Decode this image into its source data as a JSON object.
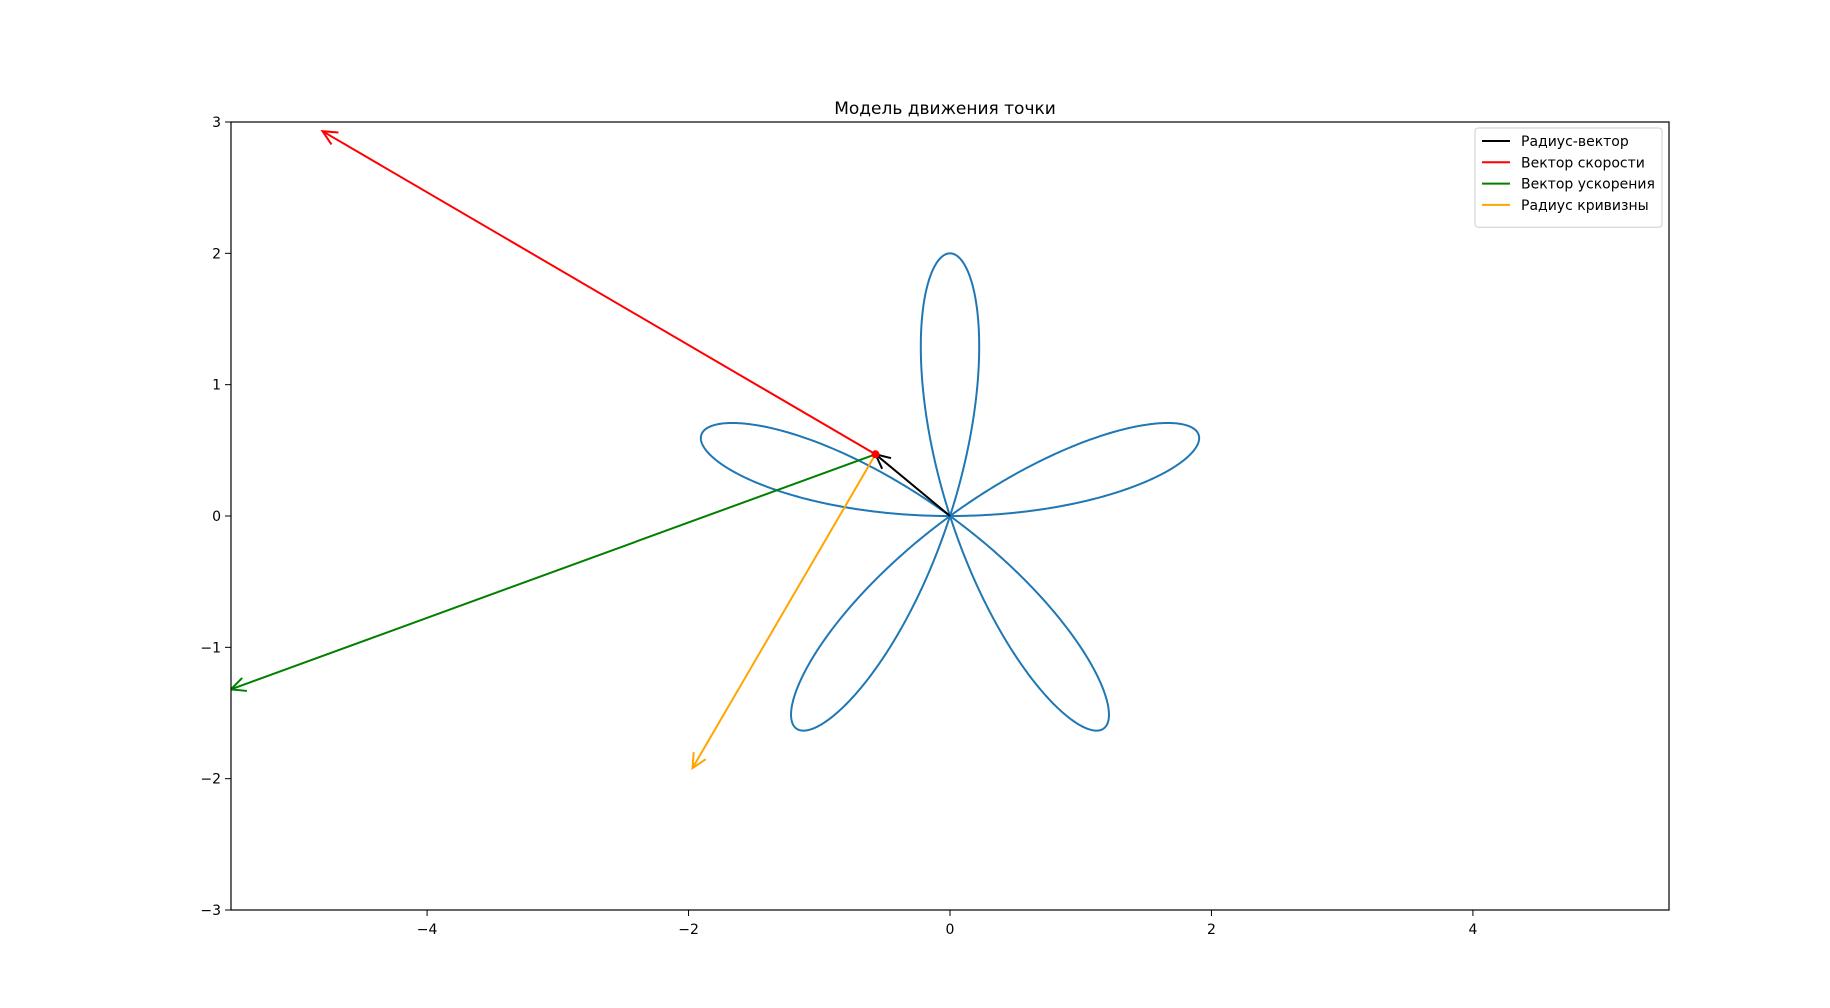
{
  "chart_data": {
    "type": "line",
    "title": "Модель движения точки",
    "xlabel": "",
    "ylabel": "",
    "xlim": [
      -5.5,
      5.5
    ],
    "ylim": [
      -3,
      3
    ],
    "xticks": [
      -4,
      -2,
      0,
      2,
      4
    ],
    "yticks": [
      -3,
      -2,
      -1,
      0,
      1,
      2,
      3
    ],
    "xtick_labels": [
      "−4",
      "−2",
      "0",
      "2",
      "4"
    ],
    "ytick_labels": [
      "−3",
      "−2",
      "−1",
      "0",
      "1",
      "2",
      "3"
    ],
    "grid": false,
    "legend_position": "top-right",
    "trajectory": {
      "curve": "rose",
      "petals": 5,
      "amplitude": 2,
      "color": "#1f77b4"
    },
    "point": {
      "x": -0.57,
      "y": 0.47
    },
    "vectors": [
      {
        "name": "Радиус-вектор",
        "color": "#000000",
        "from": [
          0,
          0
        ],
        "to": [
          -0.57,
          0.47
        ]
      },
      {
        "name": "Вектор скорости",
        "color": "#ff0000",
        "from": [
          -0.57,
          0.47
        ],
        "to": [
          -4.8,
          2.93
        ]
      },
      {
        "name": "Вектор ускорения",
        "color": "#008000",
        "from": [
          -0.57,
          0.47
        ],
        "to": [
          -5.5,
          -1.32
        ]
      },
      {
        "name": "Радиус кривизны",
        "color": "#ffa500",
        "from": [
          -0.57,
          0.47
        ],
        "to": [
          -1.97,
          -1.92
        ]
      }
    ]
  }
}
